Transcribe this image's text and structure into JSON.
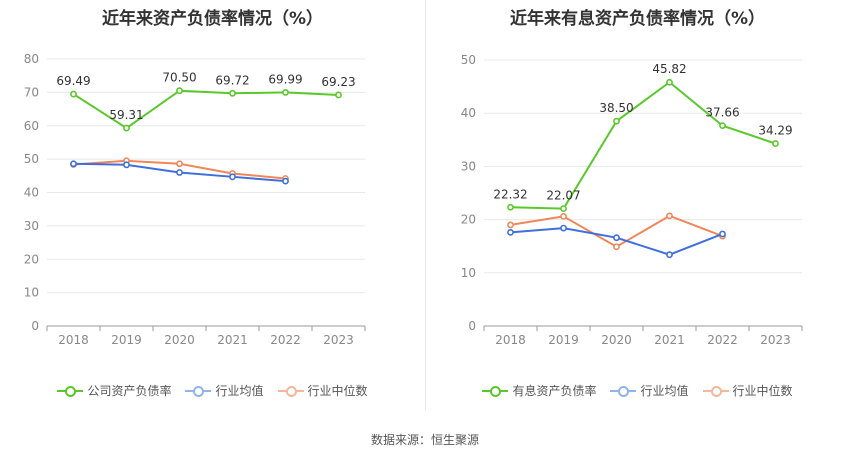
{
  "chart_data": [
    {
      "type": "line",
      "title": "近年来资产负债率情况（%）",
      "categories": [
        "2018",
        "2019",
        "2020",
        "2021",
        "2022",
        "2023"
      ],
      "ylim": [
        0,
        80
      ],
      "yticks": [
        "0",
        "10",
        "20",
        "30",
        "40",
        "50",
        "60",
        "70",
        "80"
      ],
      "grid": true,
      "legend_position": "bottom",
      "series": [
        {
          "name": "公司资产负债率",
          "color": "#5ac82b",
          "values": [
            69.49,
            59.31,
            70.5,
            69.72,
            69.99,
            69.23
          ],
          "labels": [
            "69.49",
            "59.31",
            "70.50",
            "69.72",
            "69.99",
            "69.23"
          ]
        },
        {
          "name": "行业均值",
          "color": "#3f6fdb",
          "values": [
            48.6,
            48.3,
            46.0,
            44.7,
            43.4,
            null
          ]
        },
        {
          "name": "行业中位数",
          "color": "#f0875a",
          "values": [
            48.4,
            49.5,
            48.6,
            45.7,
            44.2,
            null
          ]
        }
      ]
    },
    {
      "type": "line",
      "title": "近年来有息资产负债率情况（%）",
      "categories": [
        "2018",
        "2019",
        "2020",
        "2021",
        "2022",
        "2023"
      ],
      "ylim": [
        0,
        50
      ],
      "yticks": [
        "0",
        "10",
        "20",
        "30",
        "40",
        "50"
      ],
      "grid": true,
      "legend_position": "bottom",
      "series": [
        {
          "name": "有息资产负债率",
          "color": "#5ac82b",
          "values": [
            22.32,
            22.07,
            38.5,
            45.82,
            37.66,
            34.29
          ],
          "labels": [
            "22.32",
            "22.07",
            "38.50",
            "45.82",
            "37.66",
            "34.29"
          ]
        },
        {
          "name": "行业均值",
          "color": "#3f6fdb",
          "values": [
            17.6,
            18.4,
            16.6,
            13.4,
            17.3,
            null
          ]
        },
        {
          "name": "行业中位数",
          "color": "#f0875a",
          "values": [
            19.0,
            20.6,
            14.9,
            20.7,
            16.9,
            null
          ]
        }
      ]
    }
  ],
  "legend_colors": {
    "primary": "#5ac82b",
    "mean": "#91b3f0",
    "median": "#f5b69a"
  },
  "footer": {
    "source": "数据来源：恒生聚源"
  }
}
